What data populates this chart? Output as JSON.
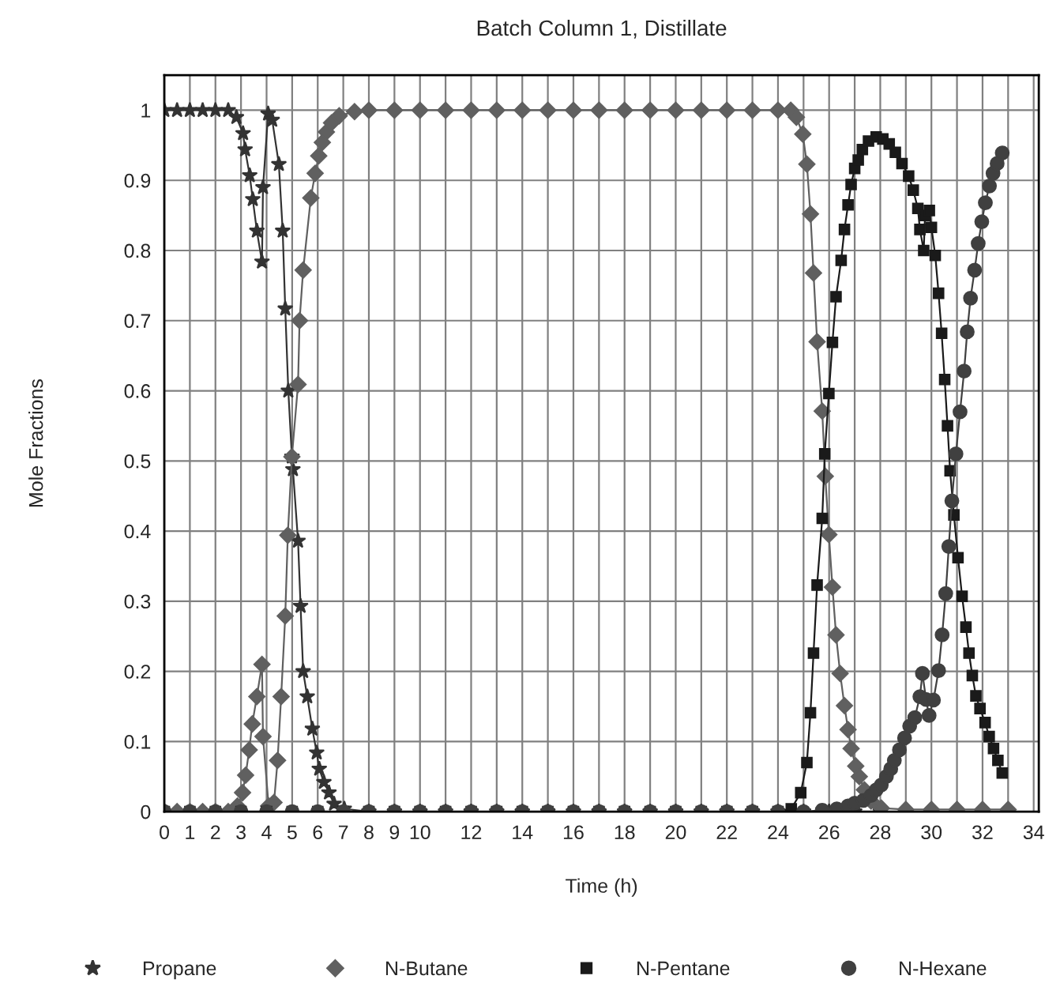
{
  "chart_data": {
    "type": "line",
    "title": "Batch Column 1, Distillate",
    "xlabel": "Time (h)",
    "ylabel": "Mole Fractions",
    "xlim": [
      0,
      34.2
    ],
    "ylim": [
      0,
      1.05
    ],
    "xticks": [
      0,
      1,
      2,
      3,
      4,
      5,
      6,
      7,
      8,
      9,
      10,
      {
        "value": 11,
        "label": null
      },
      12,
      {
        "value": 13,
        "label": null
      },
      14,
      {
        "value": 15,
        "label": null
      },
      16,
      {
        "value": 17,
        "label": null
      },
      18,
      {
        "value": 19,
        "label": null
      },
      20,
      {
        "value": 21,
        "label": null
      },
      22,
      {
        "value": 23,
        "label": null
      },
      24,
      {
        "value": 25,
        "label": null
      },
      26,
      {
        "value": 27,
        "label": null
      },
      28,
      {
        "value": 29,
        "label": null
      },
      30,
      {
        "value": 31,
        "label": null
      },
      32,
      {
        "value": 33,
        "label": null
      },
      34
    ],
    "yticks": [
      0,
      0.1,
      0.2,
      0.3,
      0.4,
      0.5,
      0.6,
      0.7,
      0.8,
      0.9,
      1
    ],
    "grid": true,
    "legend": "bottom",
    "series": [
      {
        "name": "Propane",
        "color": "#333333",
        "marker": "star",
        "x": [
          0,
          0.5,
          1,
          1.5,
          2,
          2.5,
          2.82,
          3.08,
          3.16,
          3.34,
          3.46,
          3.62,
          3.82,
          3.86,
          4.06,
          4.22,
          4.48,
          4.63,
          4.73,
          4.85,
          4.99,
          5.03,
          5.23,
          5.33,
          5.43,
          5.59,
          5.79,
          5.96,
          6.06,
          6.24,
          6.44,
          6.64,
          7.04,
          8,
          9,
          10,
          11,
          12,
          13,
          14,
          15,
          16,
          17,
          18,
          19,
          20,
          21,
          22,
          23,
          24,
          25,
          26,
          27,
          28,
          29,
          30,
          31,
          32,
          33
        ],
        "values": [
          1,
          1,
          1,
          1,
          1,
          1,
          0.99,
          0.967,
          0.944,
          0.907,
          0.873,
          0.828,
          0.784,
          0.89,
          0.995,
          0.986,
          0.923,
          0.828,
          0.717,
          0.6,
          0.506,
          0.488,
          0.386,
          0.293,
          0.2,
          0.164,
          0.118,
          0.084,
          0.061,
          0.042,
          0.027,
          0.011,
          0.004,
          0,
          0,
          0,
          0,
          0,
          0,
          0,
          0,
          0,
          0,
          0,
          0,
          0,
          0,
          0,
          0,
          0,
          0,
          0,
          0,
          0,
          0,
          0,
          0,
          0,
          0
        ]
      },
      {
        "name": "N-Butane",
        "color": "#606060",
        "marker": "diamond",
        "x": [
          0,
          0.5,
          1,
          1.5,
          2,
          2.5,
          2.86,
          3.06,
          3.18,
          3.32,
          3.44,
          3.62,
          3.82,
          3.86,
          4.08,
          4.29,
          4.43,
          4.57,
          4.73,
          4.83,
          4.99,
          5.23,
          5.29,
          5.43,
          5.73,
          5.9,
          6.04,
          6.18,
          6.34,
          6.54,
          6.84,
          7.44,
          8,
          9,
          10,
          11,
          12,
          13,
          14,
          15,
          16,
          17,
          18,
          19,
          20,
          21,
          22,
          23,
          24,
          24.5,
          24.72,
          24.97,
          25.13,
          25.27,
          25.39,
          25.53,
          25.73,
          25.85,
          25.99,
          26.13,
          26.27,
          26.43,
          26.6,
          26.74,
          26.86,
          27.04,
          27.18,
          27.38,
          27.64,
          28.04,
          29,
          30,
          31,
          32,
          33
        ],
        "values": [
          0,
          0,
          0,
          0,
          0,
          0,
          0.008,
          0.027,
          0.052,
          0.088,
          0.125,
          0.164,
          0.21,
          0.107,
          0.008,
          0.013,
          0.073,
          0.164,
          0.279,
          0.394,
          0.506,
          0.609,
          0.7,
          0.772,
          0.875,
          0.91,
          0.935,
          0.954,
          0.969,
          0.982,
          0.992,
          0.998,
          1,
          1,
          1,
          1,
          1,
          1,
          1,
          1,
          1,
          1,
          1,
          1,
          1,
          1,
          1,
          1,
          1,
          1,
          0.99,
          0.966,
          0.923,
          0.852,
          0.768,
          0.67,
          0.571,
          0.478,
          0.395,
          0.32,
          0.252,
          0.197,
          0.151,
          0.117,
          0.09,
          0.065,
          0.05,
          0.031,
          0.015,
          0.005,
          0.003,
          0.003,
          0.003,
          0.003,
          0.003
        ]
      },
      {
        "name": "N-Pentane",
        "color": "#1a1a1a",
        "marker": "square",
        "x": [
          0,
          1,
          2,
          3,
          4,
          5,
          6,
          7,
          8,
          9,
          10,
          11,
          12,
          13,
          14,
          15,
          16,
          17,
          18,
          19,
          20,
          21,
          22,
          23,
          24,
          24.52,
          24.89,
          25.13,
          25.27,
          25.39,
          25.53,
          25.73,
          25.83,
          25.99,
          26.13,
          26.27,
          26.47,
          26.6,
          26.74,
          26.86,
          27.0,
          27.14,
          27.3,
          27.54,
          27.84,
          28.1,
          28.35,
          28.59,
          28.85,
          29.11,
          29.29,
          29.47,
          29.55,
          29.7,
          29.75,
          29.92,
          30.0,
          30.15,
          30.28,
          30.4,
          30.52,
          30.63,
          30.73,
          30.88,
          31.04,
          31.2,
          31.35,
          31.47,
          31.6,
          31.74,
          31.9,
          32.1,
          32.26,
          32.43,
          32.6,
          32.77
        ],
        "values": [
          0,
          0,
          0,
          0,
          0,
          0,
          0,
          0,
          0,
          0,
          0,
          0,
          0,
          0,
          0,
          0,
          0,
          0,
          0,
          0,
          0,
          0,
          0,
          0,
          0,
          0.004,
          0.027,
          0.07,
          0.141,
          0.226,
          0.323,
          0.418,
          0.51,
          0.596,
          0.669,
          0.734,
          0.786,
          0.83,
          0.865,
          0.894,
          0.917,
          0.929,
          0.944,
          0.956,
          0.962,
          0.959,
          0.952,
          0.94,
          0.924,
          0.906,
          0.886,
          0.86,
          0.83,
          0.8,
          0.85,
          0.857,
          0.833,
          0.793,
          0.739,
          0.682,
          0.616,
          0.55,
          0.486,
          0.423,
          0.362,
          0.307,
          0.263,
          0.226,
          0.194,
          0.165,
          0.147,
          0.127,
          0.107,
          0.09,
          0.073,
          0.055
        ]
      },
      {
        "name": "N-Hexane",
        "color": "#404040",
        "marker": "circle",
        "x": [
          0,
          1,
          2,
          3,
          4,
          5,
          6,
          7,
          8,
          9,
          10,
          11,
          12,
          13,
          14,
          15,
          16,
          17,
          18,
          19,
          20,
          21,
          22,
          23,
          24,
          25,
          25.73,
          26.3,
          26.74,
          27.0,
          27.34,
          27.64,
          27.84,
          28.04,
          28.24,
          28.41,
          28.55,
          28.75,
          28.95,
          29.15,
          29.35,
          29.55,
          29.65,
          29.79,
          29.91,
          30.08,
          30.28,
          30.42,
          30.56,
          30.68,
          30.8,
          30.96,
          31.12,
          31.28,
          31.4,
          31.53,
          31.69,
          31.83,
          31.97,
          32.11,
          32.27,
          32.41,
          32.57,
          32.77
        ],
        "values": [
          0,
          0,
          0,
          0,
          0,
          0,
          0,
          0,
          0,
          0,
          0,
          0,
          0,
          0,
          0,
          0,
          0,
          0,
          0,
          0,
          0,
          0,
          0,
          0,
          0,
          0,
          0.002,
          0.004,
          0.008,
          0.012,
          0.016,
          0.023,
          0.031,
          0.038,
          0.05,
          0.061,
          0.073,
          0.088,
          0.105,
          0.122,
          0.134,
          0.164,
          0.197,
          0.16,
          0.137,
          0.159,
          0.201,
          0.252,
          0.311,
          0.378,
          0.443,
          0.51,
          0.57,
          0.628,
          0.684,
          0.732,
          0.772,
          0.81,
          0.841,
          0.868,
          0.892,
          0.91,
          0.924,
          0.939
        ]
      }
    ]
  }
}
